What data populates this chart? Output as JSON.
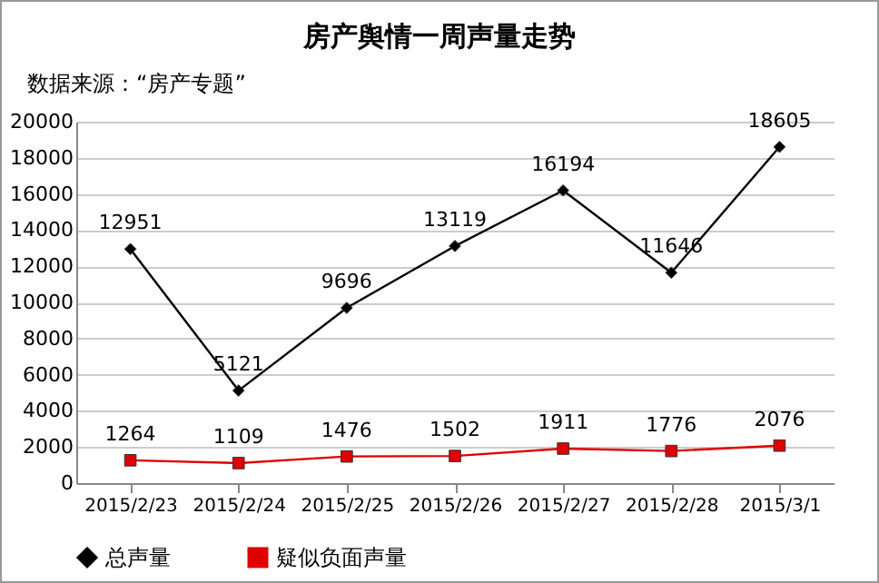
{
  "chart_data": {
    "type": "line",
    "title": "房产舆情一周声量走势",
    "annotations": [
      "数据来源：“房产专题”"
    ],
    "categories": [
      "2015/2/23",
      "2015/2/24",
      "2015/2/25",
      "2015/2/26",
      "2015/2/27",
      "2015/2/28",
      "2015/3/1"
    ],
    "series": [
      {
        "name": "总声量",
        "color": "#000000",
        "marker": "diamond",
        "values": [
          12951,
          5121,
          9696,
          13119,
          16194,
          11646,
          18605
        ]
      },
      {
        "name": "疑似负面声量",
        "color": "#e00000",
        "marker": "square",
        "values": [
          1264,
          1109,
          1476,
          1502,
          1911,
          1776,
          2076
        ]
      }
    ],
    "ylim": [
      0,
      20000
    ],
    "yticks": [
      0,
      2000,
      4000,
      6000,
      8000,
      10000,
      12000,
      14000,
      16000,
      18000,
      20000
    ],
    "grid": "y",
    "legend": "bottom",
    "data_labels": true,
    "line_style": "solid"
  }
}
